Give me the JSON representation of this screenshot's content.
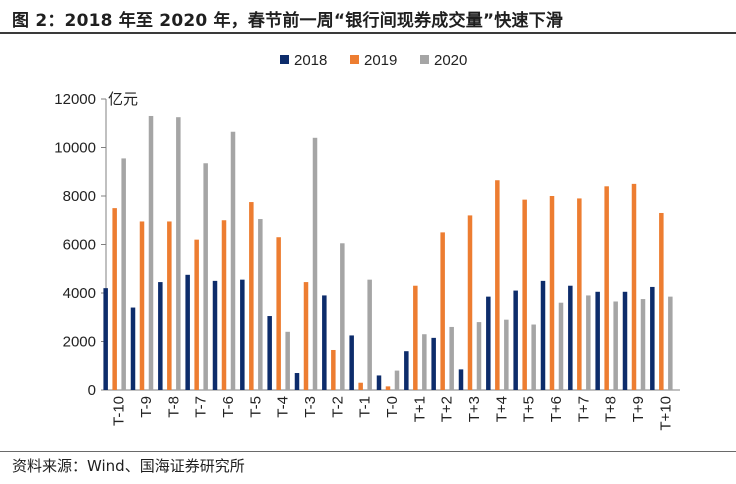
{
  "title": "图 2：2018 年至 2020 年，春节前一周“银行间现券成交量”快速下滑",
  "source": "资料来源：Wind、国海证券研究所",
  "chart_data": {
    "type": "bar",
    "unit": "亿元",
    "categories": [
      "T-10",
      "T-9",
      "T-8",
      "T-7",
      "T-6",
      "T-5",
      "T-4",
      "T-3",
      "T-2",
      "T-1",
      "T-0",
      "T+1",
      "T+2",
      "T+3",
      "T+4",
      "T+5",
      "T+6",
      "T+7",
      "T+8",
      "T+9",
      "T+10"
    ],
    "series": [
      {
        "name": "2018",
        "color": "#0d2c6b",
        "values": [
          4200,
          3400,
          4450,
          4750,
          4500,
          4550,
          3050,
          700,
          3900,
          2250,
          600,
          1600,
          2150,
          850,
          3850,
          4100,
          4500,
          4300,
          4050,
          4050,
          4250
        ]
      },
      {
        "name": "2019",
        "color": "#ed7d31",
        "values": [
          7500,
          6950,
          6950,
          6200,
          7000,
          7750,
          6300,
          4450,
          1650,
          300,
          150,
          4300,
          6500,
          7200,
          8650,
          7850,
          8000,
          7900,
          8400,
          8500,
          7300
        ]
      },
      {
        "name": "2020",
        "color": "#a5a5a5",
        "values": [
          9550,
          11300,
          11250,
          9350,
          10650,
          7050,
          2400,
          10400,
          6050,
          4550,
          800,
          2300,
          2600,
          2800,
          2900,
          2700,
          3600,
          3900,
          3650,
          3750,
          3850
        ]
      }
    ],
    "ylim": [
      0,
      12000
    ],
    "yticks": [
      0,
      2000,
      4000,
      6000,
      8000,
      10000,
      12000
    ],
    "legend_position": "top-center"
  }
}
